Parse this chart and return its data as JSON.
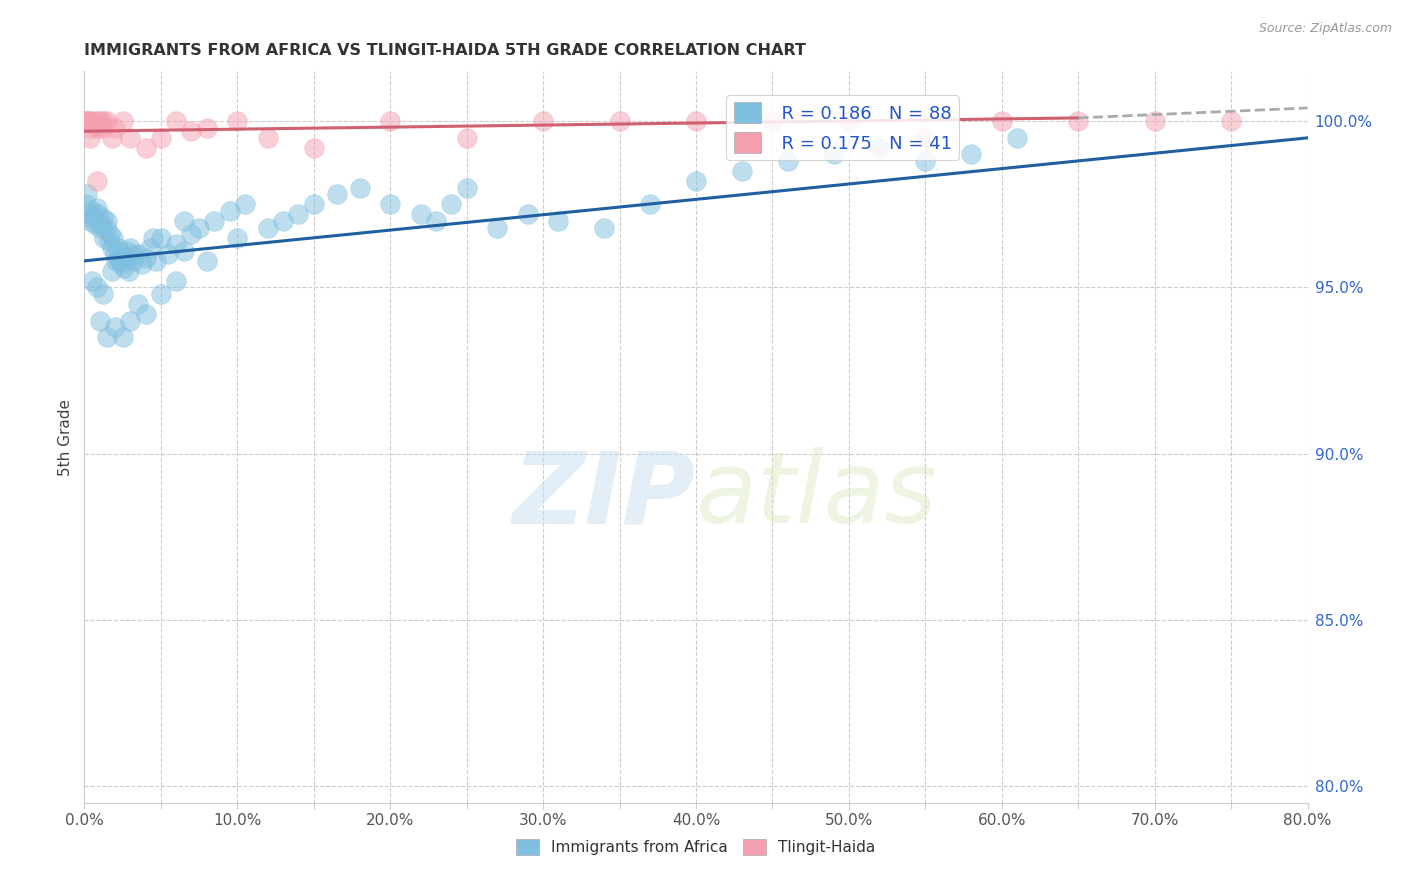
{
  "title": "IMMIGRANTS FROM AFRICA VS TLINGIT-HAIDA 5TH GRADE CORRELATION CHART",
  "source": "Source: ZipAtlas.com",
  "ylabel": "5th Grade",
  "x_tick_labels": [
    "0.0%",
    "",
    "10.0%",
    "",
    "20.0%",
    "",
    "30.0%",
    "",
    "40.0%",
    "",
    "50.0%",
    "",
    "60.0%",
    "",
    "70.0%",
    "",
    "80.0%"
  ],
  "x_tick_values": [
    0,
    5,
    10,
    15,
    20,
    25,
    30,
    35,
    40,
    45,
    50,
    55,
    60,
    65,
    70,
    75,
    80
  ],
  "y_tick_labels": [
    "80.0%",
    "85.0%",
    "90.0%",
    "95.0%",
    "100.0%"
  ],
  "y_tick_values": [
    80,
    85,
    90,
    95,
    100
  ],
  "xlim": [
    0,
    80
  ],
  "ylim": [
    79.5,
    101.5
  ],
  "legend_r1": "R = 0.186",
  "legend_n1": "N = 88",
  "legend_r2": "R = 0.175",
  "legend_n2": "N = 41",
  "blue_color": "#7fbfdf",
  "pink_color": "#f5a0b0",
  "trend_blue": "#2060a0",
  "trend_pink": "#d06070",
  "watermark_zip": "ZIP",
  "watermark_atlas": "atlas",
  "blue_scatter_x": [
    0.1,
    0.2,
    0.3,
    0.4,
    0.5,
    0.6,
    0.7,
    0.8,
    0.9,
    1.0,
    1.1,
    1.2,
    1.3,
    1.4,
    1.5,
    1.6,
    1.7,
    1.8,
    1.9,
    2.0,
    2.1,
    2.2,
    2.3,
    2.4,
    2.5,
    2.6,
    2.7,
    2.8,
    2.9,
    3.0,
    3.2,
    3.5,
    3.8,
    4.0,
    4.3,
    4.7,
    5.0,
    5.5,
    6.0,
    6.5,
    7.0,
    7.5,
    8.5,
    9.5,
    10.5,
    12.0,
    14.0,
    15.0,
    16.5,
    18.0,
    20.0,
    22.0,
    23.0,
    24.0,
    25.0,
    27.0,
    29.0,
    31.0,
    34.0,
    37.0,
    40.0,
    43.0,
    46.0,
    49.0,
    52.0,
    55.0,
    58.0,
    61.0,
    1.0,
    1.5,
    2.0,
    2.5,
    3.0,
    3.5,
    4.0,
    5.0,
    6.0,
    8.0,
    10.0,
    13.0,
    0.5,
    0.8,
    1.2,
    1.8,
    2.3,
    3.2,
    4.5,
    6.5
  ],
  "blue_scatter_y": [
    97.5,
    97.8,
    97.2,
    97.0,
    97.3,
    97.1,
    96.9,
    97.4,
    97.2,
    96.8,
    96.9,
    97.1,
    96.5,
    96.8,
    97.0,
    96.4,
    96.6,
    96.2,
    96.5,
    96.0,
    95.8,
    96.2,
    95.9,
    95.7,
    96.0,
    95.6,
    95.9,
    96.1,
    95.5,
    96.2,
    95.8,
    96.0,
    95.7,
    95.9,
    96.2,
    95.8,
    96.5,
    96.0,
    96.3,
    96.1,
    96.6,
    96.8,
    97.0,
    97.3,
    97.5,
    96.8,
    97.2,
    97.5,
    97.8,
    98.0,
    97.5,
    97.2,
    97.0,
    97.5,
    98.0,
    96.8,
    97.2,
    97.0,
    96.8,
    97.5,
    98.2,
    98.5,
    98.8,
    99.0,
    99.2,
    98.8,
    99.0,
    99.5,
    94.0,
    93.5,
    93.8,
    93.5,
    94.0,
    94.5,
    94.2,
    94.8,
    95.2,
    95.8,
    96.5,
    97.0,
    95.2,
    95.0,
    94.8,
    95.5,
    95.8,
    96.0,
    96.5,
    97.0
  ],
  "pink_scatter_x": [
    0.1,
    0.15,
    0.2,
    0.3,
    0.4,
    0.5,
    0.6,
    0.7,
    0.8,
    0.9,
    1.0,
    1.1,
    1.2,
    1.3,
    1.5,
    1.8,
    2.0,
    2.5,
    3.0,
    4.0,
    5.0,
    6.0,
    7.0,
    8.0,
    10.0,
    12.0,
    15.0,
    20.0,
    25.0,
    30.0,
    35.0,
    40.0,
    45.0,
    50.0,
    55.0,
    60.0,
    65.0,
    70.0,
    75.0,
    0.4,
    0.8
  ],
  "pink_scatter_y": [
    100.0,
    100.0,
    100.0,
    100.0,
    99.8,
    100.0,
    99.9,
    100.0,
    99.8,
    100.0,
    100.0,
    99.9,
    99.8,
    100.0,
    100.0,
    99.5,
    99.8,
    100.0,
    99.5,
    99.2,
    99.5,
    100.0,
    99.7,
    99.8,
    100.0,
    99.5,
    99.2,
    100.0,
    99.5,
    100.0,
    100.0,
    100.0,
    100.0,
    100.0,
    99.5,
    100.0,
    100.0,
    100.0,
    100.0,
    99.5,
    98.2
  ],
  "blue_trend_x0": 0,
  "blue_trend_x1": 80,
  "blue_trend_y0": 95.8,
  "blue_trend_y1": 99.5,
  "pink_trend_x0": 0,
  "pink_trend_x1": 65,
  "pink_trend_y0": 99.7,
  "pink_trend_y1": 100.1,
  "dashed_trend_x0": 65,
  "dashed_trend_x1": 80,
  "dashed_trend_y0": 100.1,
  "dashed_trend_y1": 100.4
}
